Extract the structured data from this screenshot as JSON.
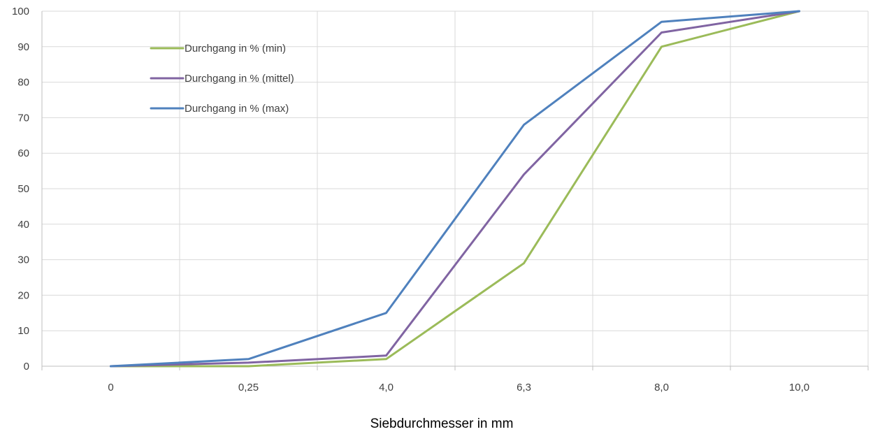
{
  "chart_data": {
    "type": "line",
    "categories": [
      "0",
      "0,25",
      "4,0",
      "6,3",
      "8,0",
      "10,0"
    ],
    "series": [
      {
        "name": "Durchgang in % (min)",
        "values": [
          0,
          0,
          2,
          29,
          90,
          100
        ],
        "color": "#9bbb59"
      },
      {
        "name": "Durchgang in % (mittel)",
        "values": [
          0,
          1,
          3,
          54,
          94,
          100
        ],
        "color": "#8064a2"
      },
      {
        "name": "Durchgang in % (max)",
        "values": [
          0,
          2,
          15,
          68,
          97,
          100
        ],
        "color": "#4f81bd"
      }
    ],
    "yticks": [
      "0",
      "10",
      "20",
      "30",
      "40",
      "50",
      "60",
      "70",
      "80",
      "90",
      "100"
    ],
    "ylim": [
      0,
      100
    ],
    "xlabel": "Siebdurchmesser in mm",
    "ylabel": "",
    "title": "",
    "grid": true,
    "legend_position": "top-left inside plot"
  }
}
